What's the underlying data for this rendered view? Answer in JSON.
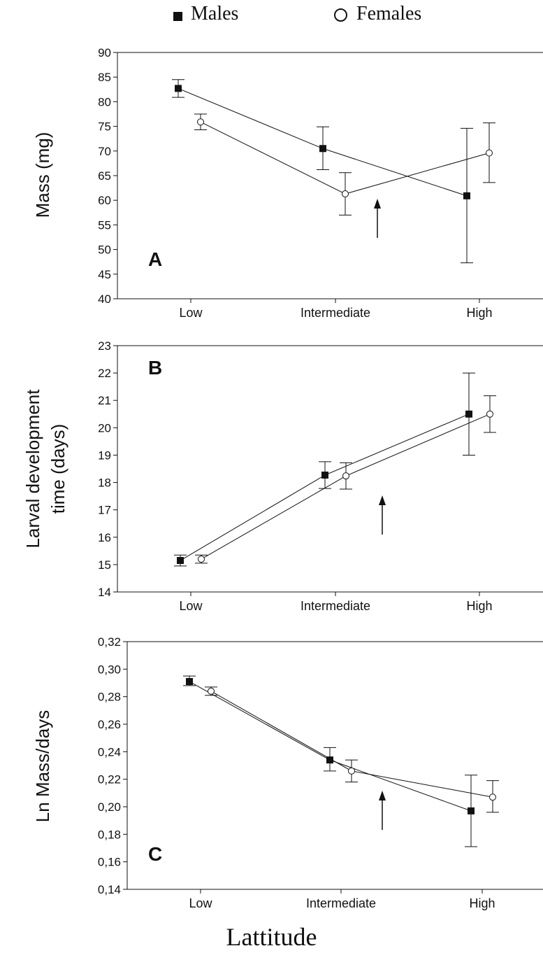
{
  "legend": {
    "males_label": "Males",
    "females_label": "Females"
  },
  "x_title": "Lattitude",
  "colors": {
    "ink": "#111111",
    "background": "#ffffff"
  },
  "chart_data": [
    {
      "type": "line",
      "panel_letter": "A",
      "ylabel": "Mass (mg)",
      "categories": [
        "Low",
        "Intermediate",
        "High"
      ],
      "ylim": [
        40,
        90
      ],
      "yticks": [
        "40",
        "45",
        "50",
        "55",
        "60",
        "65",
        "70",
        "75",
        "80",
        "85",
        "90"
      ],
      "series": [
        {
          "name": "Males",
          "marker": "square",
          "values": [
            82.7,
            70.5,
            60.9
          ],
          "err_low": [
            80.9,
            66.2,
            47.3
          ],
          "err_high": [
            84.5,
            74.9,
            74.6
          ]
        },
        {
          "name": "Females",
          "marker": "circle",
          "values": [
            75.9,
            61.3,
            69.6
          ],
          "err_low": [
            74.3,
            57.0,
            63.6
          ],
          "err_high": [
            77.5,
            65.6,
            75.7
          ]
        }
      ]
    },
    {
      "type": "line",
      "panel_letter": "B",
      "ylabel": "Larval development time (days)",
      "categories": [
        "Low",
        "Intermediate",
        "High"
      ],
      "ylim": [
        14,
        23
      ],
      "yticks": [
        "14",
        "15",
        "16",
        "17",
        "18",
        "19",
        "20",
        "21",
        "22",
        "23"
      ],
      "series": [
        {
          "name": "Males",
          "marker": "square",
          "values": [
            15.15,
            18.27,
            20.5
          ],
          "err_low": [
            14.95,
            17.78,
            19.0
          ],
          "err_high": [
            15.35,
            18.76,
            22.0
          ]
        },
        {
          "name": "Females",
          "marker": "circle",
          "values": [
            15.2,
            18.24,
            20.5
          ],
          "err_low": [
            15.05,
            17.76,
            19.83
          ],
          "err_high": [
            15.35,
            18.72,
            21.17
          ]
        }
      ]
    },
    {
      "type": "line",
      "panel_letter": "C",
      "ylabel": "Ln Mass/days",
      "categories": [
        "Low",
        "Intermediate",
        "High"
      ],
      "ylim": [
        0.14,
        0.32
      ],
      "yticks": [
        "0,14",
        "0,16",
        "0,18",
        "0,20",
        "0,22",
        "0,24",
        "0,26",
        "0,28",
        "0,30",
        "0,32"
      ],
      "series": [
        {
          "name": "Males",
          "marker": "square",
          "values": [
            0.291,
            0.234,
            0.197
          ],
          "err_low": [
            0.288,
            0.226,
            0.171
          ],
          "err_high": [
            0.295,
            0.243,
            0.223
          ]
        },
        {
          "name": "Females",
          "marker": "circle",
          "values": [
            0.284,
            0.226,
            0.207
          ],
          "err_low": [
            0.281,
            0.218,
            0.196
          ],
          "err_high": [
            0.287,
            0.234,
            0.219
          ]
        }
      ]
    }
  ]
}
